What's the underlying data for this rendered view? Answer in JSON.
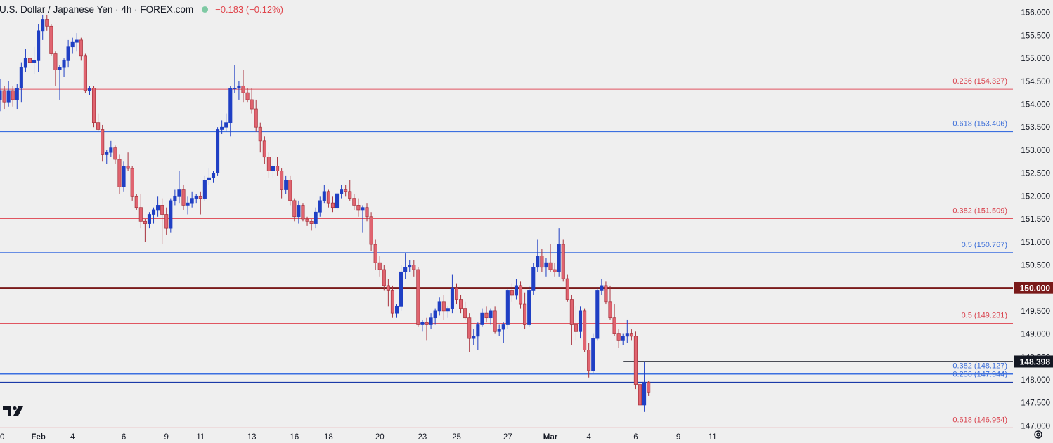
{
  "header": {
    "title": "U.S. Dollar / Japanese Yen · 4h · FOREX.com",
    "change": "−0.183 (−0.12%)"
  },
  "colors": {
    "background": "#efefef",
    "up_candle": "#1f3fc4",
    "down_candle": "#e06470",
    "down_border": "#a8323c",
    "fib_red": "#e05560",
    "fib_blue": "#3b6fe0",
    "level_150": "#7a1a1a",
    "text_red": "#d9434e",
    "text_blue": "#3d6fd9"
  },
  "chart_data": {
    "type": "candlestick",
    "title": "U.S. Dollar / Japanese Yen · 4h · FOREX.com",
    "ylim": [
      146.93,
      156.27
    ],
    "y_ticks": [
      "156.000",
      "155.500",
      "155.000",
      "154.500",
      "154.000",
      "153.500",
      "153.000",
      "152.500",
      "152.000",
      "151.500",
      "151.000",
      "150.500",
      "150.000",
      "149.500",
      "149.000",
      "148.500",
      "148.000",
      "147.500",
      "147.000"
    ],
    "x_labels": [
      {
        "label": "0",
        "bar": 0
      },
      {
        "label": "Feb",
        "bar": 9
      },
      {
        "label": "4",
        "bar": 17
      },
      {
        "label": "6",
        "bar": 29
      },
      {
        "label": "9",
        "bar": 39
      },
      {
        "label": "11",
        "bar": 47
      },
      {
        "label": "13",
        "bar": 59
      },
      {
        "label": "16",
        "bar": 69
      },
      {
        "label": "18",
        "bar": 77
      },
      {
        "label": "20",
        "bar": 89
      },
      {
        "label": "23",
        "bar": 99
      },
      {
        "label": "25",
        "bar": 107
      },
      {
        "label": "27",
        "bar": 119
      },
      {
        "label": "Mar",
        "bar": 129
      },
      {
        "label": "4",
        "bar": 138
      },
      {
        "label": "6",
        "bar": 149
      },
      {
        "label": "9",
        "bar": 159
      },
      {
        "label": "11",
        "bar": 167
      }
    ],
    "candles": [
      [
        154.1,
        154.55,
        153.85,
        154.3
      ],
      [
        154.3,
        154.4,
        153.9,
        154.05
      ],
      [
        154.05,
        154.5,
        153.95,
        154.3
      ],
      [
        154.3,
        154.4,
        153.95,
        154.1
      ],
      [
        154.1,
        154.45,
        153.9,
        154.35
      ],
      [
        154.35,
        154.9,
        154.05,
        154.8
      ],
      [
        154.8,
        155.2,
        154.7,
        155.0
      ],
      [
        155.0,
        155.2,
        154.8,
        154.9
      ],
      [
        154.9,
        155.25,
        154.65,
        154.95
      ],
      [
        154.95,
        155.75,
        154.7,
        155.6
      ],
      [
        155.6,
        155.95,
        155.4,
        155.85
      ],
      [
        155.85,
        155.95,
        155.6,
        155.7
      ],
      [
        155.7,
        155.75,
        155.05,
        155.1
      ],
      [
        155.1,
        155.15,
        154.4,
        154.75
      ],
      [
        154.75,
        154.85,
        154.1,
        154.8
      ],
      [
        154.8,
        155.0,
        154.6,
        154.95
      ],
      [
        154.95,
        155.4,
        154.8,
        155.25
      ],
      [
        155.25,
        155.45,
        155.1,
        155.35
      ],
      [
        155.35,
        155.55,
        155.15,
        155.4
      ],
      [
        155.4,
        155.45,
        154.95,
        155.05
      ],
      [
        155.05,
        155.1,
        154.25,
        154.3
      ],
      [
        154.3,
        154.4,
        154.2,
        154.35
      ],
      [
        154.35,
        154.4,
        153.5,
        153.6
      ],
      [
        153.6,
        153.8,
        153.4,
        153.45
      ],
      [
        153.45,
        153.55,
        152.75,
        152.9
      ],
      [
        152.9,
        153.0,
        152.7,
        152.95
      ],
      [
        152.95,
        153.2,
        152.85,
        153.05
      ],
      [
        153.05,
        153.1,
        152.7,
        152.8
      ],
      [
        152.8,
        152.9,
        152.05,
        152.2
      ],
      [
        152.2,
        152.75,
        152.1,
        152.65
      ],
      [
        152.65,
        152.95,
        152.55,
        152.6
      ],
      [
        152.6,
        152.65,
        151.9,
        152.0
      ],
      [
        152.0,
        152.05,
        151.7,
        151.75
      ],
      [
        151.75,
        152.05,
        151.3,
        151.45
      ],
      [
        151.45,
        151.5,
        151.0,
        151.4
      ],
      [
        151.4,
        151.65,
        151.3,
        151.6
      ],
      [
        151.6,
        151.75,
        151.4,
        151.7
      ],
      [
        151.7,
        152.0,
        151.55,
        151.8
      ],
      [
        151.8,
        151.95,
        150.95,
        151.6
      ],
      [
        151.6,
        151.75,
        151.15,
        151.3
      ],
      [
        151.3,
        151.95,
        151.2,
        151.9
      ],
      [
        151.9,
        152.15,
        151.8,
        152.0
      ],
      [
        152.0,
        152.55,
        151.85,
        152.15
      ],
      [
        152.15,
        152.25,
        151.7,
        151.8
      ],
      [
        151.8,
        152.0,
        151.6,
        151.85
      ],
      [
        151.85,
        152.1,
        151.75,
        151.95
      ],
      [
        151.95,
        152.05,
        151.85,
        152.0
      ],
      [
        152.0,
        152.1,
        151.6,
        151.95
      ],
      [
        151.95,
        152.45,
        151.9,
        152.35
      ],
      [
        152.35,
        152.6,
        152.25,
        152.4
      ],
      [
        152.4,
        152.55,
        152.3,
        152.5
      ],
      [
        152.5,
        153.5,
        152.45,
        153.45
      ],
      [
        153.45,
        153.65,
        153.35,
        153.5
      ],
      [
        153.5,
        153.8,
        153.4,
        153.6
      ],
      [
        153.6,
        154.4,
        153.3,
        154.35
      ],
      [
        154.35,
        154.85,
        154.25,
        154.35
      ],
      [
        154.35,
        154.5,
        154.1,
        154.4
      ],
      [
        154.4,
        154.75,
        154.05,
        154.25
      ],
      [
        154.25,
        154.35,
        154.05,
        154.1
      ],
      [
        154.1,
        154.35,
        153.8,
        153.9
      ],
      [
        153.9,
        154.1,
        153.4,
        153.5
      ],
      [
        153.5,
        153.6,
        152.95,
        153.2
      ],
      [
        153.2,
        153.3,
        152.7,
        152.85
      ],
      [
        152.85,
        152.95,
        152.4,
        152.55
      ],
      [
        152.55,
        152.85,
        152.4,
        152.65
      ],
      [
        152.65,
        152.85,
        152.45,
        152.55
      ],
      [
        152.55,
        152.6,
        151.95,
        152.15
      ],
      [
        152.15,
        152.45,
        152.05,
        152.35
      ],
      [
        152.35,
        152.45,
        151.8,
        151.9
      ],
      [
        151.9,
        151.95,
        151.45,
        151.55
      ],
      [
        151.55,
        151.9,
        151.4,
        151.8
      ],
      [
        151.8,
        151.85,
        151.45,
        151.5
      ],
      [
        151.5,
        151.55,
        151.35,
        151.45
      ],
      [
        151.45,
        151.5,
        151.25,
        151.4
      ],
      [
        151.4,
        151.75,
        151.3,
        151.65
      ],
      [
        151.65,
        152.0,
        151.55,
        151.9
      ],
      [
        151.9,
        152.25,
        151.85,
        152.1
      ],
      [
        152.1,
        152.15,
        151.75,
        151.85
      ],
      [
        151.85,
        152.0,
        151.65,
        151.75
      ],
      [
        151.75,
        152.1,
        151.7,
        152.05
      ],
      [
        152.05,
        152.25,
        151.95,
        152.15
      ],
      [
        152.15,
        152.25,
        152.0,
        152.1
      ],
      [
        152.1,
        152.35,
        151.9,
        151.95
      ],
      [
        151.95,
        152.05,
        151.7,
        151.8
      ],
      [
        151.8,
        151.95,
        151.55,
        151.7
      ],
      [
        151.7,
        151.8,
        151.2,
        151.75
      ],
      [
        151.75,
        151.85,
        151.45,
        151.55
      ],
      [
        151.55,
        151.65,
        150.8,
        150.95
      ],
      [
        150.95,
        151.05,
        150.4,
        150.55
      ],
      [
        150.55,
        150.7,
        150.25,
        150.4
      ],
      [
        150.4,
        150.5,
        149.95,
        150.05
      ],
      [
        150.05,
        150.2,
        149.6,
        149.95
      ],
      [
        149.95,
        150.05,
        149.35,
        149.45
      ],
      [
        149.45,
        149.65,
        149.35,
        149.6
      ],
      [
        149.6,
        150.5,
        149.5,
        150.35
      ],
      [
        150.35,
        150.75,
        150.2,
        150.45
      ],
      [
        150.45,
        150.6,
        150.35,
        150.5
      ],
      [
        150.5,
        150.6,
        150.25,
        150.4
      ],
      [
        150.4,
        150.45,
        149.15,
        149.2
      ],
      [
        149.2,
        149.3,
        149.05,
        149.25
      ],
      [
        149.25,
        149.35,
        148.85,
        149.2
      ],
      [
        149.2,
        149.45,
        149.1,
        149.35
      ],
      [
        149.35,
        149.55,
        149.2,
        149.5
      ],
      [
        149.5,
        149.8,
        149.4,
        149.7
      ],
      [
        149.7,
        149.85,
        149.3,
        149.5
      ],
      [
        149.5,
        149.6,
        149.35,
        149.55
      ],
      [
        149.55,
        150.3,
        149.45,
        150.0
      ],
      [
        150.0,
        150.1,
        149.65,
        149.75
      ],
      [
        149.75,
        149.85,
        149.45,
        149.55
      ],
      [
        149.55,
        149.7,
        149.3,
        149.35
      ],
      [
        149.35,
        149.45,
        148.6,
        148.9
      ],
      [
        148.9,
        149.1,
        148.75,
        148.95
      ],
      [
        148.95,
        149.25,
        148.65,
        149.2
      ],
      [
        149.2,
        149.55,
        149.15,
        149.45
      ],
      [
        149.45,
        149.6,
        149.25,
        149.35
      ],
      [
        149.35,
        149.55,
        149.2,
        149.5
      ],
      [
        149.5,
        149.6,
        149.0,
        149.05
      ],
      [
        149.05,
        149.2,
        148.95,
        149.1
      ],
      [
        149.1,
        149.25,
        148.8,
        149.2
      ],
      [
        149.2,
        150.0,
        149.1,
        149.95
      ],
      [
        149.95,
        150.1,
        149.7,
        149.85
      ],
      [
        149.85,
        150.2,
        149.75,
        150.05
      ],
      [
        150.05,
        150.15,
        149.55,
        149.65
      ],
      [
        149.65,
        149.9,
        149.1,
        149.2
      ],
      [
        149.2,
        150.05,
        149.15,
        149.95
      ],
      [
        149.95,
        150.55,
        149.85,
        150.45
      ],
      [
        150.45,
        151.05,
        150.35,
        150.7
      ],
      [
        150.7,
        150.85,
        150.35,
        150.45
      ],
      [
        150.45,
        150.65,
        150.25,
        150.55
      ],
      [
        150.55,
        150.95,
        150.35,
        150.4
      ],
      [
        150.4,
        150.55,
        150.25,
        150.35
      ],
      [
        150.35,
        151.3,
        150.25,
        150.95
      ],
      [
        150.95,
        151.05,
        150.15,
        150.2
      ],
      [
        150.2,
        150.3,
        149.7,
        149.75
      ],
      [
        149.75,
        149.85,
        148.75,
        149.2
      ],
      [
        149.2,
        149.6,
        148.85,
        149.05
      ],
      [
        149.05,
        149.6,
        148.9,
        149.5
      ],
      [
        149.5,
        149.55,
        148.6,
        148.65
      ],
      [
        148.65,
        148.8,
        148.05,
        148.2
      ],
      [
        148.2,
        149.0,
        148.15,
        148.9
      ],
      [
        148.9,
        150.0,
        148.85,
        149.95
      ],
      [
        149.95,
        150.2,
        149.85,
        150.05
      ],
      [
        150.05,
        150.15,
        149.65,
        149.7
      ],
      [
        149.7,
        150.05,
        149.3,
        149.35
      ],
      [
        149.35,
        149.65,
        148.95,
        149.0
      ],
      [
        149.0,
        149.1,
        148.7,
        148.85
      ],
      [
        148.85,
        149.0,
        148.75,
        148.95
      ],
      [
        148.95,
        149.3,
        148.8,
        149.0
      ],
      [
        149.0,
        149.1,
        148.85,
        148.95
      ],
      [
        148.95,
        149.05,
        147.8,
        147.9
      ],
      [
        147.9,
        148.0,
        147.35,
        147.45
      ],
      [
        147.45,
        148.4,
        147.3,
        147.95
      ],
      [
        147.95,
        147.98,
        147.65,
        147.72
      ]
    ],
    "horizontal_levels": [
      {
        "price": 154.327,
        "label": "0.236 (154.327)",
        "style": "fib_red"
      },
      {
        "price": 153.406,
        "label": "0.618 (153.406)",
        "style": "fib_blue"
      },
      {
        "price": 151.509,
        "label": "0.382 (151.509)",
        "style": "fib_red"
      },
      {
        "price": 150.767,
        "label": "0.5 (150.767)",
        "style": "fib_blue"
      },
      {
        "price": 150.0,
        "label": "",
        "style": "level_150"
      },
      {
        "price": 149.231,
        "label": "0.5 (149.231)",
        "style": "fib_red"
      },
      {
        "price": 148.127,
        "label": "0.382 (148.127)",
        "style": "fib_blue"
      },
      {
        "price": 147.944,
        "label": "0.236 (147.944)",
        "style": "fib_navy"
      },
      {
        "price": 146.954,
        "label": "0.618 (146.954)",
        "style": "fib_red"
      }
    ],
    "price_badges": [
      {
        "price": 150.0,
        "label": "150.000",
        "bg": "#7a1a1a",
        "fg": "#ffffff"
      },
      {
        "price": 148.398,
        "label": "148.398",
        "bg": "#131722",
        "fg": "#ffffff"
      }
    ],
    "current_price_line": {
      "price": 148.398,
      "from_bar": 146
    }
  }
}
